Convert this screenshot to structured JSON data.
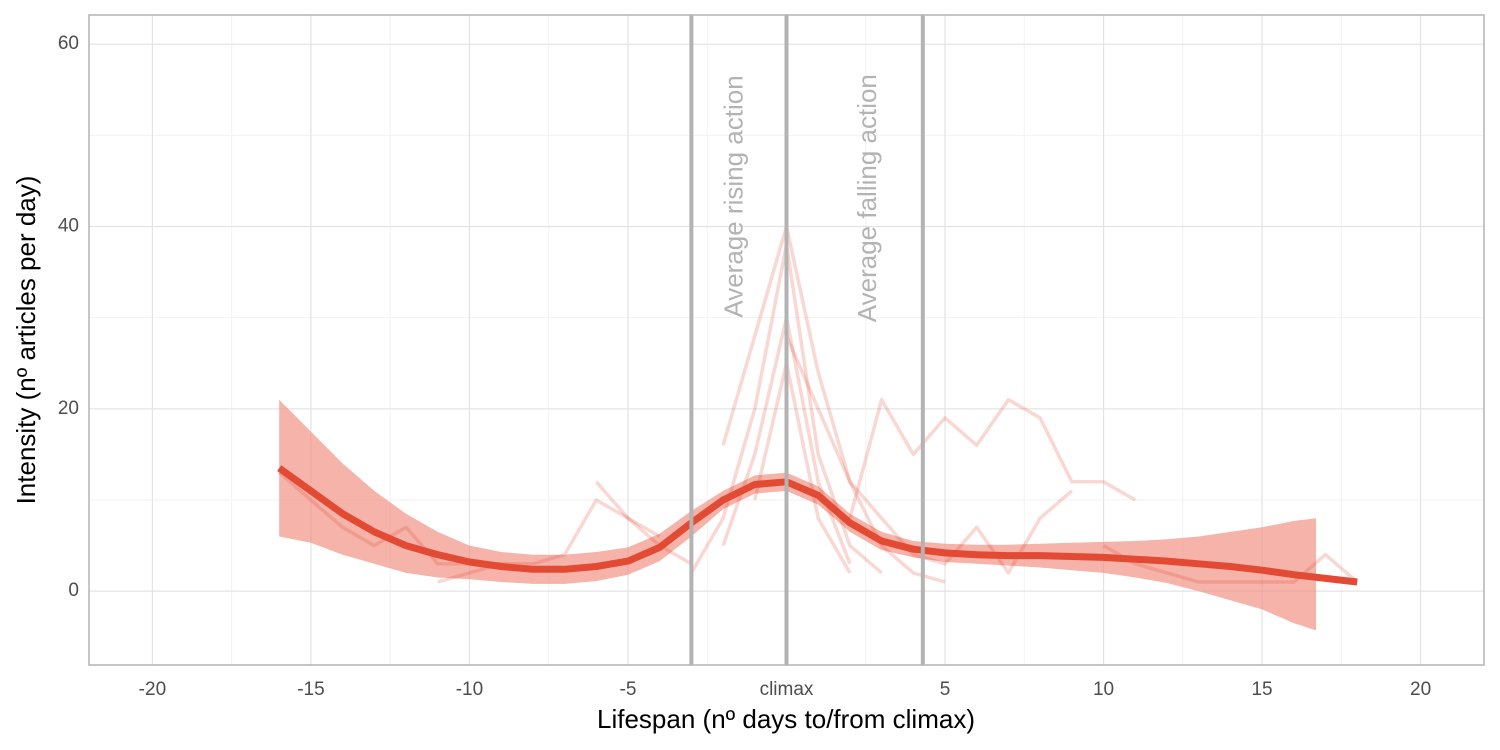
{
  "chart_data": {
    "type": "line",
    "x_label": "Lifespan (nº days to/from climax)",
    "y_label": "Intensity (nº articles per day)",
    "xlim": [
      -22,
      22
    ],
    "ylim": [
      -8.1,
      63.2
    ],
    "xticks": [
      -20,
      -15,
      -10,
      -5,
      {
        "value": 0,
        "label": "climax"
      },
      5,
      10,
      15,
      20
    ],
    "yticks": [
      0,
      20,
      40,
      60
    ],
    "grid": true,
    "color": "#e34a33",
    "band_color": "#ef8a7c",
    "vline_color": "#b3b3b3",
    "vlines": [
      -3,
      0,
      4.3
    ],
    "annotations": [
      {
        "text": "Average rising action",
        "x": -1.6,
        "y": 30
      },
      {
        "text": "Average falling action",
        "x": 2.6,
        "y": 29.5
      }
    ],
    "smooth": {
      "x": [
        -16,
        -15,
        -14,
        -13,
        -12,
        -11,
        -10,
        -9,
        -8,
        -7,
        -6,
        -5,
        -4,
        -3,
        -2,
        -1,
        0,
        1,
        2,
        3,
        4,
        5,
        6,
        7,
        8,
        9,
        10,
        11,
        12,
        13,
        14,
        15,
        16,
        17,
        18
      ],
      "values": [
        13.5,
        11,
        8.5,
        6.5,
        5,
        4,
        3.2,
        2.7,
        2.4,
        2.4,
        2.7,
        3.3,
        4.8,
        7.5,
        10,
        11.7,
        12,
        10.5,
        7.5,
        5.5,
        4.6,
        4.2,
        4,
        3.9,
        3.9,
        3.8,
        3.7,
        3.5,
        3.3,
        3.0,
        2.7,
        2.3,
        1.8,
        1.4,
        1.0
      ]
    },
    "band": {
      "x": [
        -16,
        -15,
        -14,
        -13,
        -12,
        -11,
        -10,
        -9,
        -8,
        -7,
        -6,
        -5,
        -4,
        -3,
        -2,
        -1,
        0,
        1,
        2,
        3,
        4,
        5,
        6,
        7,
        8,
        9,
        10,
        11,
        12,
        13,
        14,
        15,
        16,
        16.7
      ],
      "upper": [
        21,
        17.5,
        14,
        11,
        8.5,
        6.5,
        5,
        4.3,
        4,
        4,
        4.3,
        4.8,
        6.3,
        8.8,
        11,
        12.7,
        13,
        11.5,
        8.5,
        6.5,
        5.5,
        5.2,
        5.1,
        5.1,
        5.2,
        5.3,
        5.4,
        5.5,
        5.7,
        6,
        6.5,
        7,
        7.7,
        8
      ],
      "lower": [
        6,
        5.3,
        4,
        3,
        2,
        1.5,
        1.3,
        1,
        0.8,
        0.8,
        1.1,
        1.8,
        3.3,
        6,
        9,
        10.7,
        11,
        9.5,
        6.5,
        4.5,
        3.7,
        3.2,
        3,
        2.8,
        2.6,
        2.3,
        2,
        1.5,
        0.9,
        0,
        -1,
        -2,
        -3.5,
        -4.3
      ]
    },
    "traces": [
      {
        "x": [
          -3,
          -2,
          -1,
          0,
          1,
          2,
          3
        ],
        "values": [
          2,
          8,
          20,
          38,
          15,
          5,
          2
        ]
      },
      {
        "x": [
          -2,
          -1,
          0,
          1,
          2
        ],
        "values": [
          5,
          15,
          30,
          12,
          3
        ]
      },
      {
        "x": [
          -1,
          0,
          1,
          2
        ],
        "values": [
          10,
          25,
          8,
          2
        ]
      },
      {
        "x": [
          2,
          3,
          4,
          5,
          6,
          7,
          8,
          9,
          10,
          11
        ],
        "values": [
          8,
          21,
          15,
          19,
          16,
          21,
          19,
          12,
          12,
          10
        ]
      },
      {
        "x": [
          -16,
          -15,
          -14,
          -13,
          -12,
          -11,
          -10,
          -9
        ],
        "values": [
          13,
          10,
          7,
          5,
          7,
          3,
          3,
          3
        ]
      },
      {
        "x": [
          -11,
          -10,
          -9,
          -8,
          -7,
          -6,
          -5,
          -4
        ],
        "values": [
          1,
          2,
          3,
          3,
          4,
          10,
          8,
          6
        ]
      },
      {
        "x": [
          -6,
          -5,
          -4,
          -3
        ],
        "values": [
          12,
          8,
          5,
          3
        ]
      },
      {
        "x": [
          10,
          11,
          12,
          13,
          14,
          15,
          16,
          17,
          18
        ],
        "values": [
          5,
          3,
          2,
          1,
          1,
          1,
          1,
          4,
          1
        ]
      },
      {
        "x": [
          0,
          1,
          2,
          3,
          4,
          5,
          6,
          7,
          8,
          9
        ],
        "values": [
          28,
          20,
          12,
          8,
          4,
          3,
          7,
          2,
          8,
          11
        ]
      },
      {
        "x": [
          -2,
          -1,
          0,
          1,
          2,
          3,
          4,
          5
        ],
        "values": [
          16,
          28,
          40,
          24,
          12,
          5,
          2,
          1
        ]
      }
    ]
  }
}
